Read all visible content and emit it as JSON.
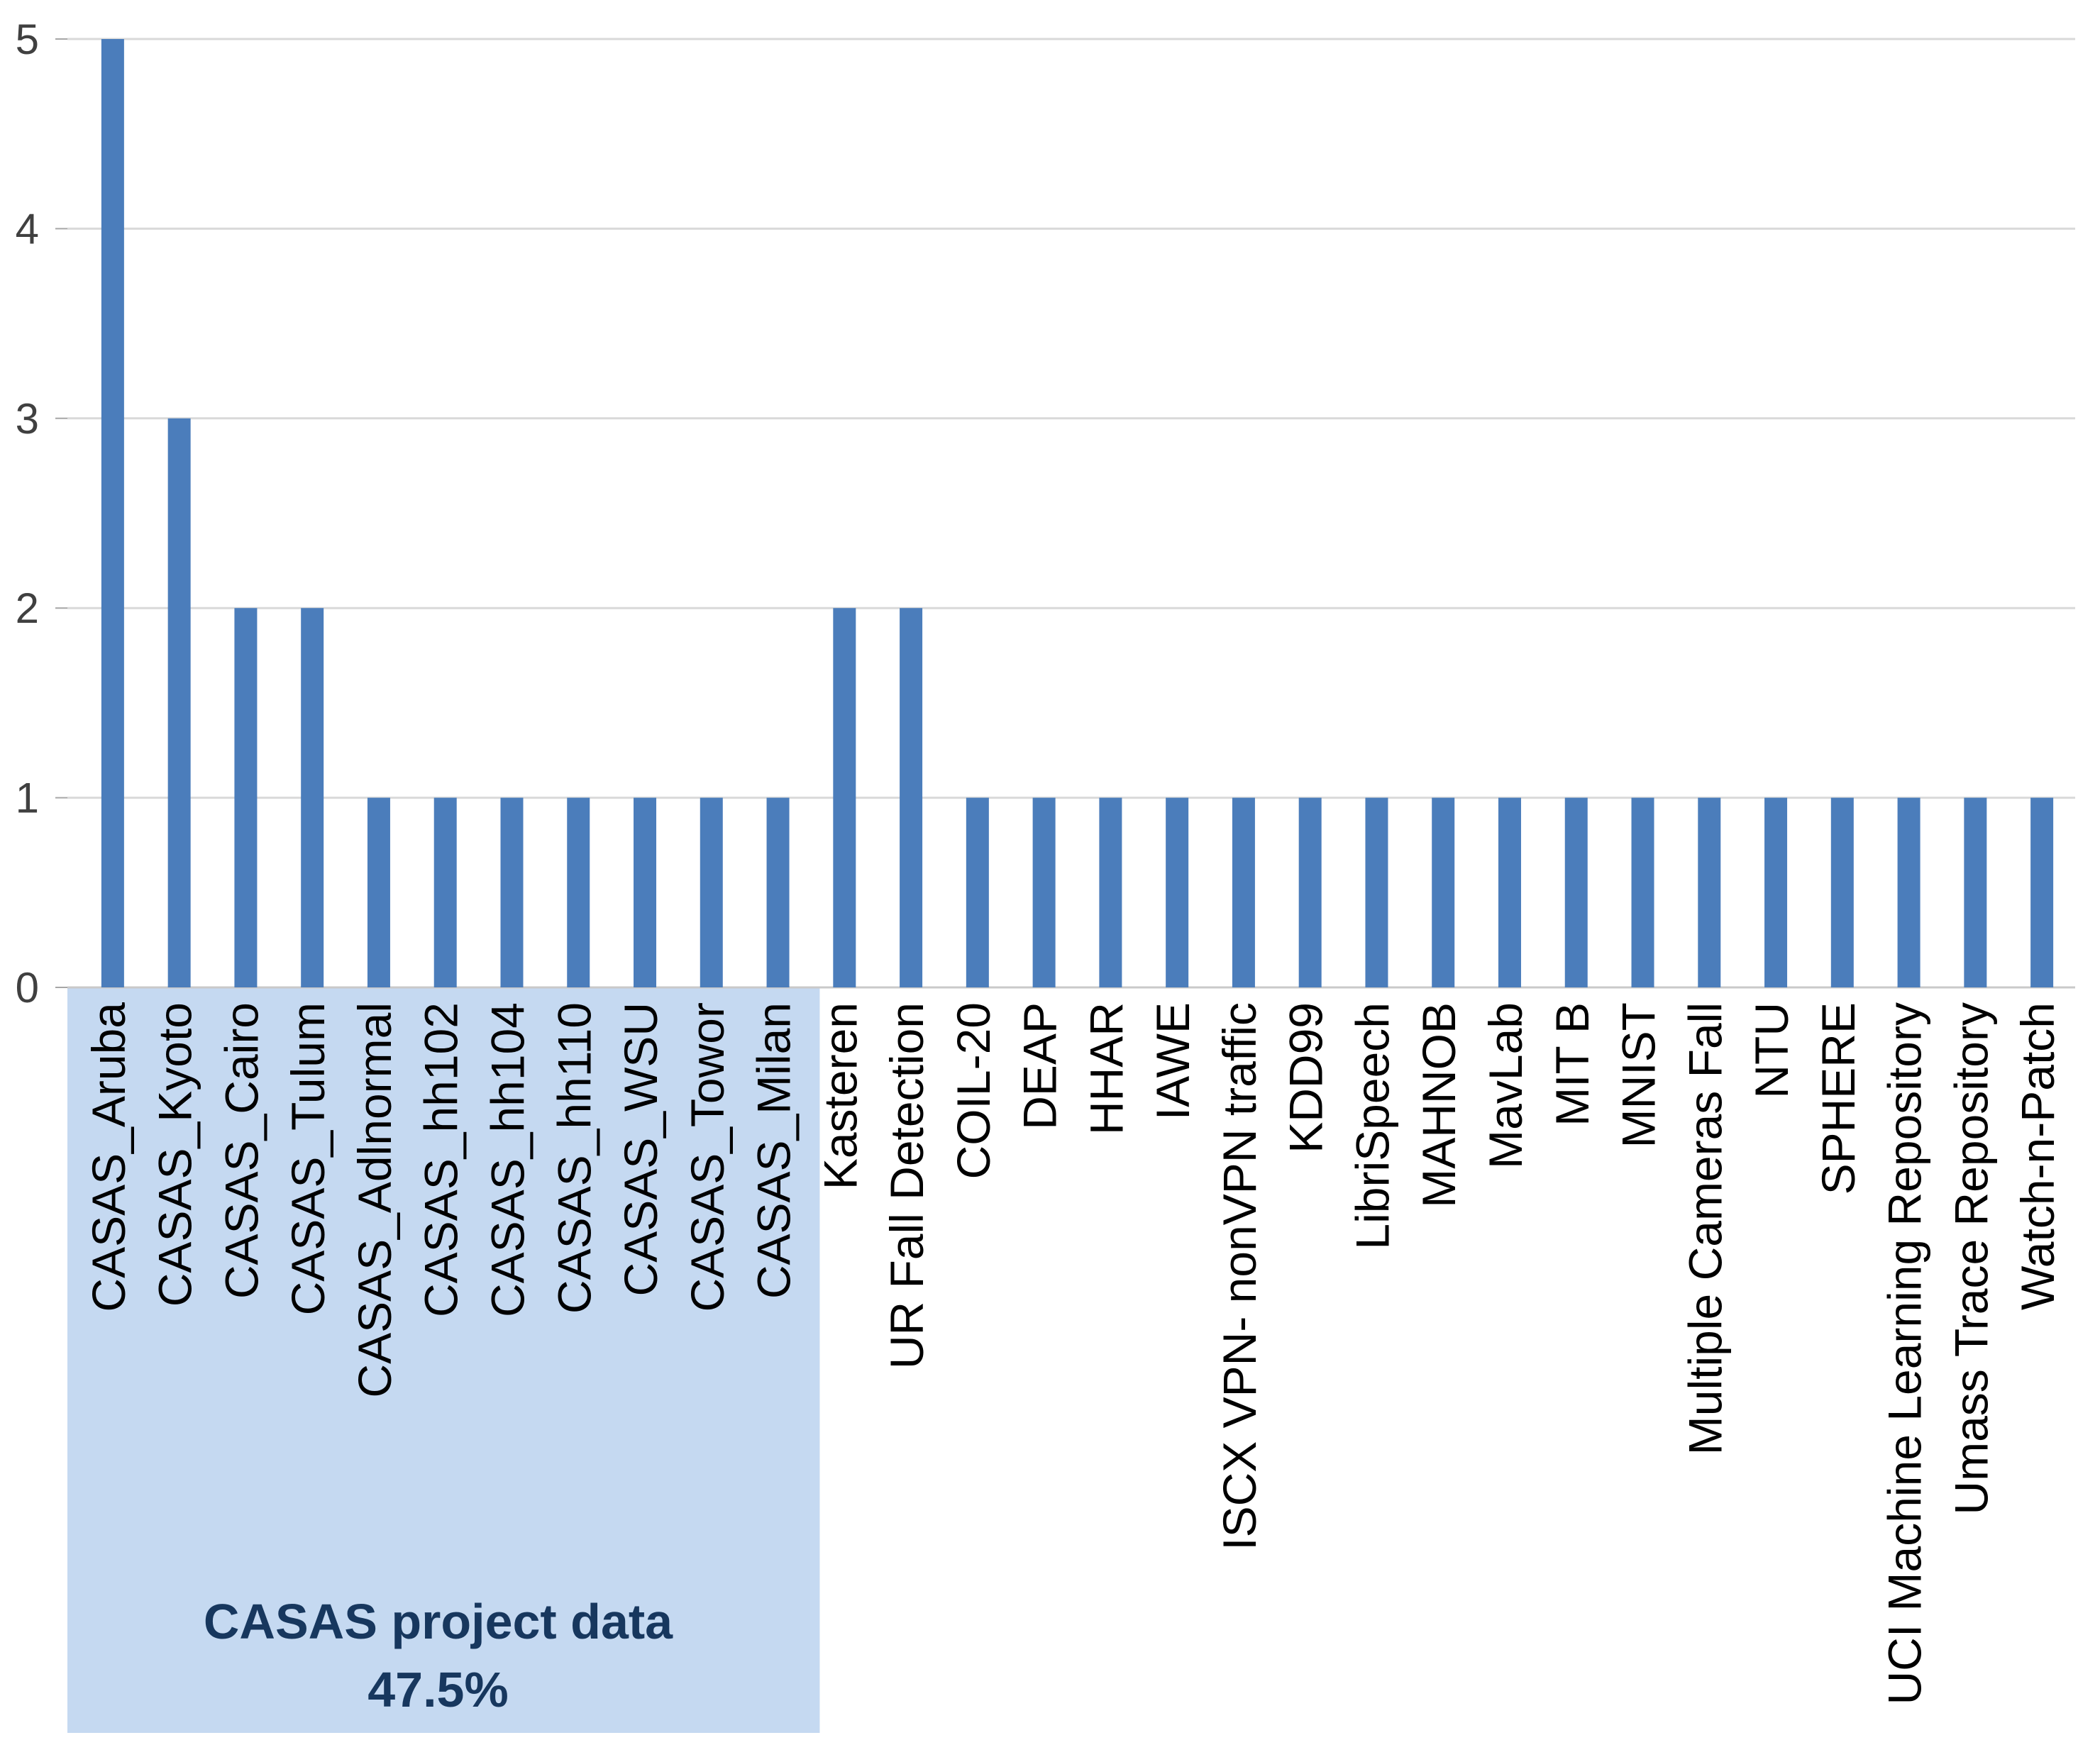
{
  "chart_data": {
    "type": "bar",
    "title": "",
    "xlabel": "",
    "ylabel": "",
    "categories": [
      "CASAS_Aruba",
      "CASAS_Kyoto",
      "CASAS_Cairo",
      "CASAS_Tulum",
      "CASAS_Adlnormal",
      "CASAS_hh102",
      "CASAS_hh104",
      "CASAS_hh110",
      "CASAS_WSU",
      "CASAS_Towor",
      "CASAS_Milan",
      "Kasteren",
      "UR Fall Detection",
      "COIL-20",
      "DEAP",
      "HHAR",
      "IAWE",
      "ISCX VPN- nonVPN traffic",
      "KDD99",
      "LibriSpeech",
      "MAHNOB",
      "MavLab",
      "MIT B",
      "MNIST",
      "Multiple Cameras Fall",
      "NTU",
      "SPHERE",
      "UCI Machine Learning Repository",
      "Umass Trace Repository",
      "Watch-n-Patch"
    ],
    "values": [
      5,
      3,
      2,
      2,
      1,
      1,
      1,
      1,
      1,
      1,
      1,
      2,
      2,
      1,
      1,
      1,
      1,
      1,
      1,
      1,
      1,
      1,
      1,
      1,
      1,
      1,
      1,
      1,
      1,
      1
    ],
    "ylim": [
      0,
      5
    ],
    "yticks": [
      "0",
      "1",
      "2",
      "3",
      "4",
      "5"
    ],
    "grid": "horizontal",
    "legend": "none",
    "bar_color": "#4B7DBB",
    "gridline_color": "#D9D9D9",
    "axis_line_color": "#C9C9C9",
    "tick_color": "#A6A6A6",
    "ytick_label_color": "#404040",
    "category_label_color": "#000000",
    "highlight": {
      "label_line1": "CASAS project data",
      "label_line2": "47.5%",
      "covered_category_count": 11,
      "fill": "#C5D9F1",
      "text_color": "#17375E"
    }
  }
}
